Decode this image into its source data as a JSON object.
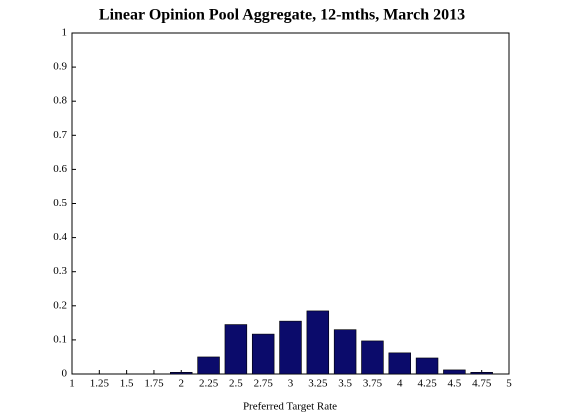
{
  "chart_data": {
    "type": "bar",
    "title": "Linear Opinion Pool Aggregate, 12-mths, March 2013",
    "x_label": "Preferred Target Rate",
    "x": [
      2,
      2.25,
      2.5,
      2.75,
      3,
      3.25,
      3.5,
      3.75,
      4,
      4.25,
      4.5,
      4.75
    ],
    "values": [
      0.005,
      0.05,
      0.145,
      0.117,
      0.155,
      0.185,
      0.13,
      0.097,
      0.062,
      0.047,
      0.012,
      0.005
    ],
    "color": "#0b0b6b",
    "xlim": [
      1,
      5
    ],
    "xticks": [
      1,
      1.25,
      1.5,
      1.75,
      2,
      2.25,
      2.5,
      2.75,
      3,
      3.25,
      3.5,
      3.75,
      4,
      4.25,
      4.5,
      4.75,
      5
    ],
    "ylim": [
      0,
      1
    ],
    "yticks": [
      0,
      0.1,
      0.2,
      0.3,
      0.4,
      0.5,
      0.6,
      0.7,
      0.8,
      0.9,
      1
    ],
    "grid": false
  }
}
